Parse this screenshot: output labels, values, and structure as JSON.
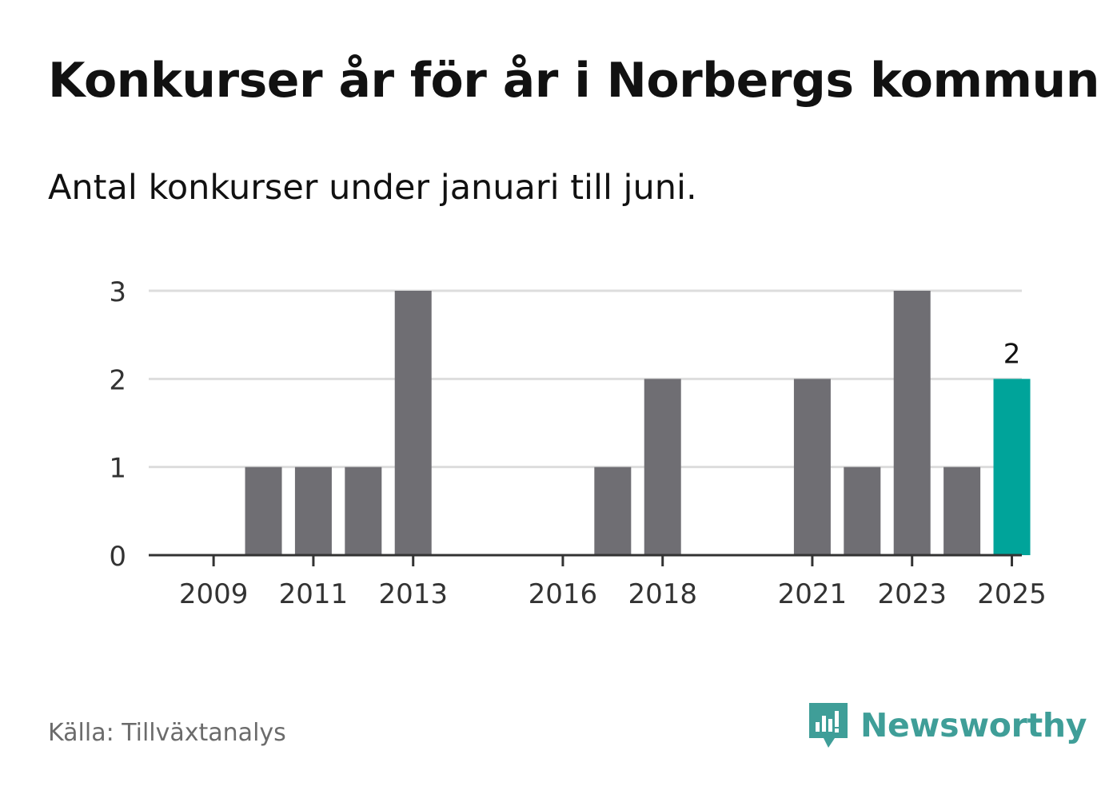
{
  "title": "Konkurser år för år i Norbergs kommun",
  "subtitle": "Antal konkurser under januari till juni.",
  "source": "Källa: Tillväxtanalys",
  "brand": {
    "name": "Newsworthy",
    "icon": "newsworthy-logo-icon",
    "color": "#3f9e98"
  },
  "colors": {
    "bar": "#6f6e73",
    "highlight": "#00a49a",
    "grid": "#dddddd",
    "axis": "#333333",
    "tick_text": "#333333"
  },
  "chart_data": {
    "type": "bar",
    "categories": [
      "2009",
      "2010",
      "2011",
      "2012",
      "2013",
      "2014",
      "2015",
      "2016",
      "2017",
      "2018",
      "2019",
      "2020",
      "2021",
      "2022",
      "2023",
      "2024",
      "2025"
    ],
    "values": [
      0,
      1,
      1,
      1,
      3,
      0,
      0,
      0,
      1,
      2,
      0,
      0,
      2,
      1,
      3,
      1,
      2
    ],
    "tick_labels": [
      "2009",
      "2011",
      "2013",
      "2016",
      "2018",
      "2021",
      "2023",
      "2025"
    ],
    "highlight_category": "2025",
    "data_labels": [
      {
        "category": "2025",
        "text": "2"
      }
    ],
    "ylim": [
      0,
      3
    ],
    "yticks": [
      "0",
      "1",
      "2",
      "3"
    ],
    "grid": true,
    "xlabel": "",
    "ylabel": ""
  }
}
